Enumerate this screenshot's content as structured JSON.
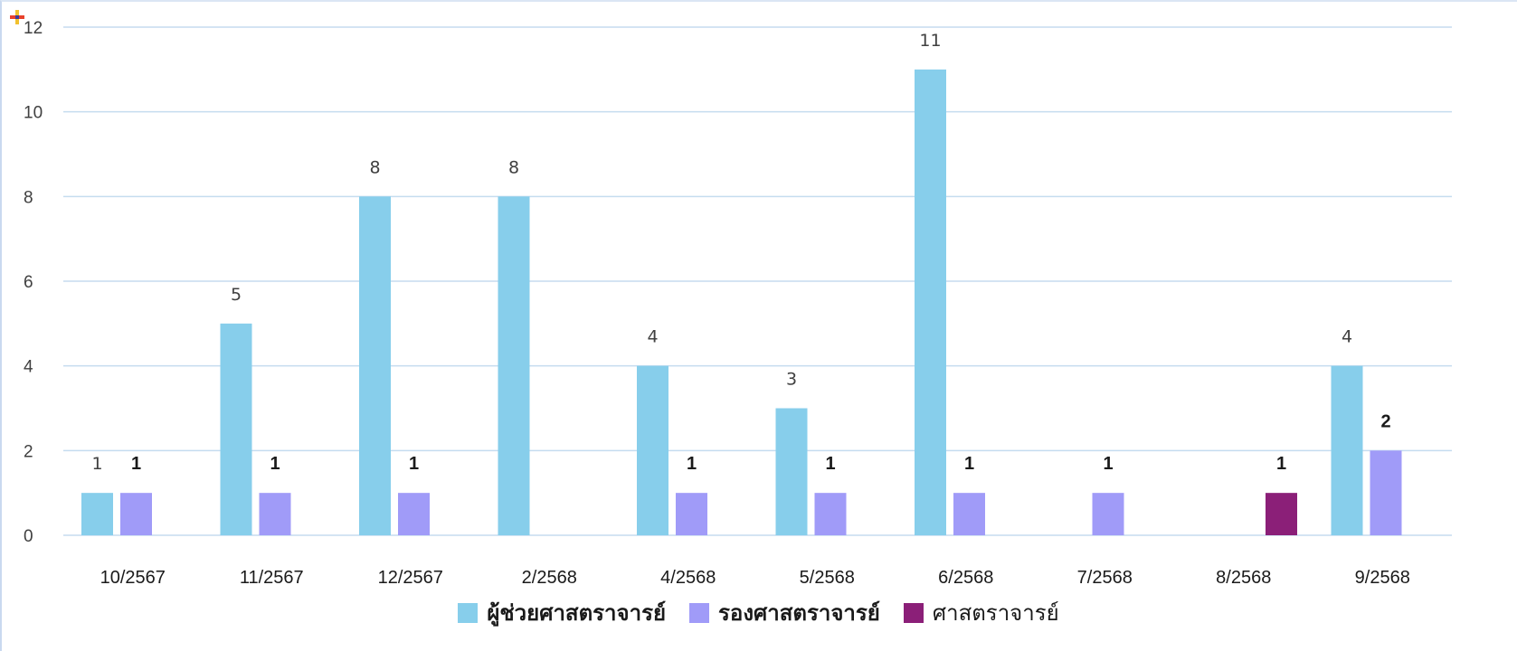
{
  "chart_data": {
    "type": "bar",
    "categories": [
      "10/2567",
      "11/2567",
      "12/2567",
      "2/2568",
      "4/2568",
      "5/2568",
      "6/2568",
      "7/2568",
      "8/2568",
      "9/2568"
    ],
    "series": [
      {
        "name": "ผู้ช่วยศาสตราจารย์",
        "color": "#87ceeb",
        "values": [
          1,
          5,
          8,
          8,
          4,
          3,
          11,
          null,
          null,
          4
        ]
      },
      {
        "name": "รองศาสตราจารย์",
        "color": "#a09bf8",
        "values": [
          1,
          1,
          1,
          null,
          1,
          1,
          1,
          1,
          null,
          2
        ]
      },
      {
        "name": "ศาสตราจารย์",
        "color": "#8b1f78",
        "values": [
          null,
          null,
          null,
          null,
          null,
          null,
          null,
          null,
          1,
          null
        ]
      }
    ],
    "yticks": [
      "0",
      "2",
      "4",
      "6",
      "8",
      "10",
      "12"
    ],
    "ylim": [
      0,
      12
    ],
    "grid": true,
    "legend_position": "bottom",
    "gridline_color": "#c5dcef"
  }
}
